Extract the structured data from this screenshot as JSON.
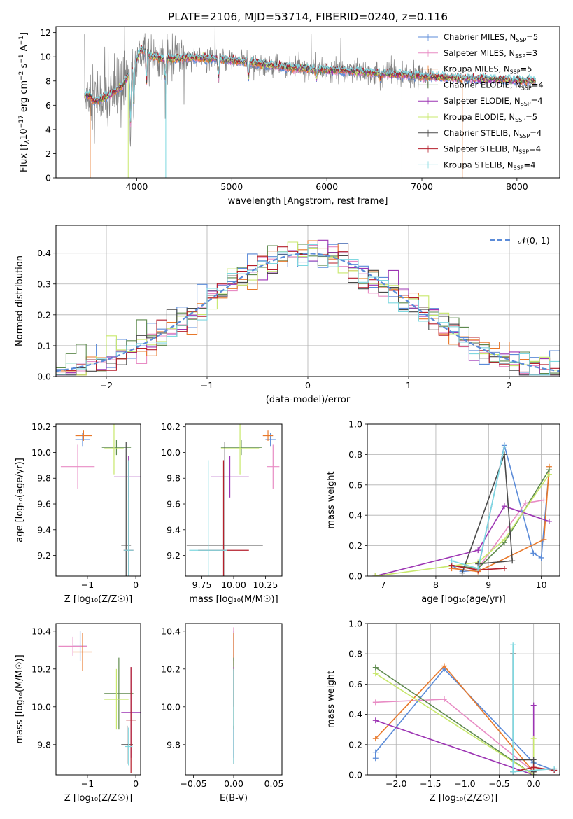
{
  "figure_title": "PLATE=2106, MJD=53714, FIBERID=0240, z=0.116",
  "colors": {
    "Chabrier MILES": "#5b8bd8",
    "Salpeter MILES": "#e88bc4",
    "Kroupa MILES": "#e8782a",
    "Chabrier ELODIE": "#5e8a4e",
    "Salpeter ELODIE": "#9c34b3",
    "Kroupa ELODIE": "#c8e86c",
    "Chabrier STELIB": "#4a4a4a",
    "Salpeter STELIB": "#b51f2b",
    "Kroupa STELIB": "#7fd8e0",
    "data": "#808080"
  },
  "chart_data": [
    {
      "id": "spectrum",
      "type": "line",
      "title": "PLATE=2106, MJD=53714, FIBERID=0240, z=0.116",
      "xlabel": "wavelength [Angstrom, rest frame]",
      "ylabel_parts": [
        "Flux [f",
        "λ",
        "10",
        "−17",
        " erg cm",
        "−2",
        " s",
        "−1",
        " A",
        "−1",
        "]"
      ],
      "xlim": [
        3150,
        8450
      ],
      "ylim": [
        0,
        12.5
      ],
      "xticks": [
        4000,
        5000,
        6000,
        7000,
        8000
      ],
      "yticks": [
        0,
        2,
        4,
        6,
        8,
        10,
        12
      ],
      "legend_position": "upper right",
      "legend": [
        {
          "base": "Chabrier MILES, N",
          "sub": "SSP",
          "tail": "=5"
        },
        {
          "base": "Salpeter MILES, N",
          "sub": "SSP",
          "tail": "=3"
        },
        {
          "base": "Kroupa MILES, N",
          "sub": "SSP",
          "tail": "=5"
        },
        {
          "base": "Chabrier ELODIE, N",
          "sub": "SSP",
          "tail": "=4"
        },
        {
          "base": "Salpeter ELODIE, N",
          "sub": "SSP",
          "tail": "=4"
        },
        {
          "base": "Kroupa ELODIE, N",
          "sub": "SSP",
          "tail": "=5"
        },
        {
          "base": "Chabrier STELIB, N",
          "sub": "SSP",
          "tail": "=4"
        },
        {
          "base": "Salpeter STELIB, N",
          "sub": "SSP",
          "tail": "=4"
        },
        {
          "base": "Kroupa STELIB, N",
          "sub": "SSP",
          "tail": "=4"
        }
      ],
      "continuum_points": [
        [
          3500,
          6.8
        ],
        [
          3550,
          6.3
        ],
        [
          3650,
          6.6
        ],
        [
          3750,
          7.0
        ],
        [
          3850,
          7.6
        ],
        [
          3950,
          9.0
        ],
        [
          4050,
          10.6
        ],
        [
          4150,
          10.0
        ],
        [
          4300,
          9.8
        ],
        [
          4500,
          9.9
        ],
        [
          4700,
          9.9
        ],
        [
          5000,
          9.7
        ],
        [
          5300,
          9.4
        ],
        [
          5600,
          9.1
        ],
        [
          6000,
          8.9
        ],
        [
          6300,
          8.8
        ],
        [
          6600,
          8.6
        ],
        [
          7000,
          8.4
        ],
        [
          7200,
          8.3
        ]
      ],
      "absorption_lines": [
        [
          3934,
          4.5
        ],
        [
          3969,
          3.5
        ],
        [
          4102,
          2.5
        ],
        [
          4300,
          1.8
        ],
        [
          4861,
          1.5
        ],
        [
          5175,
          1.3
        ],
        [
          5890,
          0.8
        ],
        [
          6563,
          0.5
        ]
      ],
      "model_dropouts": [
        3510,
        3910,
        4305,
        6790,
        7425
      ],
      "data_range": [
        3450,
        7100
      ],
      "model_range": [
        3450,
        8200
      ]
    },
    {
      "id": "residuals",
      "type": "line",
      "xlabel": "(data-model)/error",
      "ylabel": "Normed distribution",
      "xlim": [
        -2.5,
        2.5
      ],
      "ylim": [
        0,
        0.49
      ],
      "xticks": [
        -2,
        -1,
        0,
        1,
        2
      ],
      "xtick_labels": [
        "−2",
        "−1",
        "0",
        "1",
        "2"
      ],
      "yticks": [
        0,
        0.1,
        0.2,
        0.3,
        0.4
      ],
      "ytick_labels": [
        "0.0",
        "0.1",
        "0.2",
        "0.3",
        "0.4"
      ],
      "grid": true,
      "legend_position": "upper right",
      "legend_label": "𝒩(0, 1)",
      "reference_curve": {
        "mu": 0,
        "sigma": 1,
        "color": "#5b8bd8"
      },
      "bin_width": 0.1
    },
    {
      "id": "age_vs_Z",
      "type": "scatter",
      "xlabel": "Z [log₁₀(Z/Z☉)]",
      "ylabel": "age  [log₁₀(age/yr)]",
      "xlim": [
        -1.65,
        0.1
      ],
      "ylim": [
        9.04,
        10.22
      ],
      "xticks": [
        -1,
        0
      ],
      "xtick_labels": [
        "−1",
        "0"
      ],
      "yticks": [
        9.2,
        9.4,
        9.6,
        9.8,
        10.0,
        10.2
      ],
      "ytick_labels": [
        "9.2",
        "9.4",
        "9.6",
        "9.8",
        "10.0",
        "10.2"
      ],
      "points": [
        {
          "model": "Chabrier MILES",
          "x": -1.1,
          "xerr": 0.15,
          "y": 10.1,
          "yerr": 0.05
        },
        {
          "model": "Salpeter MILES",
          "x": -1.2,
          "xerr": 0.35,
          "y": 9.89,
          "yerr": 0.17
        },
        {
          "model": "Kroupa MILES",
          "x": -1.08,
          "xerr": 0.17,
          "y": 10.13,
          "yerr": 0.04
        },
        {
          "model": "Chabrier ELODIE",
          "x": -0.4,
          "xerr": 0.3,
          "y": 10.04,
          "yerr": 0.06
        },
        {
          "model": "Salpeter ELODIE",
          "x": -0.15,
          "xerr": 0.3,
          "y": 9.81,
          "yerr": 0.16
        },
        {
          "model": "Kroupa ELODIE",
          "x": -0.45,
          "xerr": 0.2,
          "y": 10.03,
          "yerr": 0.2
        },
        {
          "model": "Chabrier STELIB",
          "x": -0.2,
          "xerr": 0.1,
          "y": 9.28,
          "yerr": 0.8
        },
        {
          "model": "Salpeter STELIB",
          "x": -0.15,
          "xerr": 0.1,
          "y": 9.24,
          "yerr": 0.7
        },
        {
          "model": "Kroupa STELIB",
          "x": -0.15,
          "xerr": 0.1,
          "y": 9.24,
          "yerr": 0.7
        }
      ]
    },
    {
      "id": "age_vs_mass",
      "type": "scatter",
      "xlabel": "mass [log₁₀(M/M☉)]",
      "xlim": [
        9.62,
        10.38
      ],
      "ylim": [
        9.04,
        10.22
      ],
      "xticks": [
        9.75,
        10.0,
        10.25
      ],
      "xtick_labels": [
        "9.75",
        "10.00",
        "10.25"
      ],
      "yticks": [
        9.2,
        9.4,
        9.6,
        9.8,
        10.0,
        10.2
      ],
      "ytick_labels": [
        "9.2",
        "9.4",
        "9.6",
        "9.8",
        "10.0",
        "10.2"
      ],
      "points": [
        {
          "model": "Chabrier MILES",
          "x": 10.29,
          "xerr": 0.04,
          "y": 10.1,
          "yerr": 0.05
        },
        {
          "model": "Salpeter MILES",
          "x": 10.31,
          "xerr": 0.05,
          "y": 9.89,
          "yerr": 0.17
        },
        {
          "model": "Kroupa MILES",
          "x": 10.27,
          "xerr": 0.04,
          "y": 10.13,
          "yerr": 0.04
        },
        {
          "model": "Chabrier ELODIE",
          "x": 10.06,
          "xerr": 0.16,
          "y": 10.04,
          "yerr": 0.06
        },
        {
          "model": "Salpeter ELODIE",
          "x": 9.97,
          "xerr": 0.15,
          "y": 9.81,
          "yerr": 0.16
        },
        {
          "model": "Kroupa ELODIE",
          "x": 10.05,
          "xerr": 0.15,
          "y": 10.03,
          "yerr": 0.2
        },
        {
          "model": "Chabrier STELIB",
          "x": 9.93,
          "xerr": 0.3,
          "y": 9.28,
          "yerr": 0.8
        },
        {
          "model": "Salpeter STELIB",
          "x": 9.92,
          "xerr": 0.2,
          "y": 9.24,
          "yerr": 0.7
        },
        {
          "model": "Kroupa STELIB",
          "x": 9.8,
          "xerr": 0.15,
          "y": 9.24,
          "yerr": 0.7
        }
      ]
    },
    {
      "id": "weight_vs_age",
      "type": "line",
      "xlabel": "age  [log₁₀(age/yr)]",
      "ylabel": "mass weight",
      "xlim": [
        6.7,
        10.35
      ],
      "ylim": [
        0,
        1
      ],
      "xticks": [
        7,
        8,
        9,
        10
      ],
      "xtick_labels": [
        "7",
        "8",
        "9",
        "10"
      ],
      "yticks": [
        0,
        0.2,
        0.4,
        0.6,
        0.8,
        1.0
      ],
      "ytick_labels": [
        "0.0",
        "0.2",
        "0.4",
        "0.6",
        "0.8",
        "1.0"
      ],
      "grid": true,
      "series": [
        {
          "model": "Chabrier MILES",
          "points": [
            [
              8.3,
              0.07
            ],
            [
              8.5,
              0.03
            ],
            [
              8.8,
              0.04
            ],
            [
              9.3,
              0.86
            ],
            [
              9.85,
              0.15
            ],
            [
              10.0,
              0.12
            ],
            [
              10.15,
              0.7
            ]
          ]
        },
        {
          "model": "Salpeter MILES",
          "points": [
            [
              8.3,
              0.07
            ],
            [
              8.8,
              0.05
            ],
            [
              9.7,
              0.48
            ],
            [
              10.05,
              0.5
            ]
          ]
        },
        {
          "model": "Kroupa MILES",
          "points": [
            [
              8.3,
              0.05
            ],
            [
              8.8,
              0.03
            ],
            [
              10.05,
              0.24
            ],
            [
              10.15,
              0.72
            ]
          ]
        },
        {
          "model": "Chabrier ELODIE",
          "points": [
            [
              8.3,
              0.07
            ],
            [
              8.8,
              0.05
            ],
            [
              9.3,
              0.22
            ],
            [
              10.15,
              0.7
            ]
          ]
        },
        {
          "model": "Salpeter ELODIE",
          "points": [
            [
              6.85,
              0.0
            ],
            [
              8.8,
              0.17
            ],
            [
              9.3,
              0.46
            ],
            [
              10.15,
              0.36
            ]
          ]
        },
        {
          "model": "Kroupa ELODIE",
          "points": [
            [
              6.85,
              0.0
            ],
            [
              8.8,
              0.09
            ],
            [
              9.3,
              0.24
            ],
            [
              10.15,
              0.67
            ]
          ]
        },
        {
          "model": "Chabrier STELIB",
          "points": [
            [
              8.5,
              0.02
            ],
            [
              9.3,
              0.8
            ],
            [
              9.45,
              0.1
            ],
            [
              8.8,
              0.08
            ]
          ]
        },
        {
          "model": "Salpeter STELIB",
          "points": [
            [
              8.3,
              0.07
            ],
            [
              8.8,
              0.04
            ],
            [
              9.3,
              0.05
            ]
          ]
        },
        {
          "model": "Kroupa STELIB",
          "points": [
            [
              8.3,
              0.1
            ],
            [
              8.8,
              0.05
            ],
            [
              9.3,
              0.85
            ]
          ]
        }
      ]
    },
    {
      "id": "mass_vs_Z",
      "type": "scatter",
      "xlabel": "Z [log₁₀(Z/Z☉)]",
      "ylabel": "mass [log₁₀(M/M☉)]",
      "xlim": [
        -1.65,
        0.1
      ],
      "ylim": [
        9.64,
        10.44
      ],
      "xticks": [
        -1,
        0
      ],
      "xtick_labels": [
        "−1",
        "0"
      ],
      "yticks": [
        9.8,
        10.0,
        10.2,
        10.4
      ],
      "ytick_labels": [
        "9.8",
        "10.0",
        "10.2",
        "10.4"
      ],
      "points": [
        {
          "model": "Chabrier MILES",
          "x": -1.15,
          "xerr": 0.15,
          "y": 10.32,
          "yerr": 0.08
        },
        {
          "model": "Salpeter MILES",
          "x": -1.3,
          "xerr": 0.3,
          "y": 10.32,
          "yerr": 0.05
        },
        {
          "model": "Kroupa MILES",
          "x": -1.1,
          "xerr": 0.2,
          "y": 10.29,
          "yerr": 0.1
        },
        {
          "model": "Chabrier ELODIE",
          "x": -0.35,
          "xerr": 0.3,
          "y": 10.07,
          "yerr": 0.19
        },
        {
          "model": "Salpeter ELODIE",
          "x": -0.1,
          "xerr": 0.2,
          "y": 9.97,
          "yerr": 0.24
        },
        {
          "model": "Kroupa ELODIE",
          "x": -0.4,
          "xerr": 0.25,
          "y": 10.04,
          "yerr": 0.16
        },
        {
          "model": "Chabrier STELIB",
          "x": -0.18,
          "xerr": 0.12,
          "y": 9.8,
          "yerr": 0.1
        },
        {
          "model": "Salpeter STELIB",
          "x": -0.1,
          "xerr": 0.1,
          "y": 9.93,
          "yerr": 0.28
        },
        {
          "model": "Kroupa STELIB",
          "x": -0.15,
          "xerr": 0.08,
          "y": 9.79,
          "yerr": 0.1
        }
      ]
    },
    {
      "id": "mass_vs_ebv",
      "type": "scatter",
      "xlabel": "E(B-V)",
      "xlim": [
        -0.06,
        0.06
      ],
      "ylim": [
        9.64,
        10.44
      ],
      "xticks": [
        -0.05,
        0,
        0.05
      ],
      "xtick_labels": [
        "−0.05",
        "0.00",
        "0.05"
      ],
      "yticks": [
        9.8,
        10.0,
        10.2,
        10.4
      ],
      "ytick_labels": [
        "9.8",
        "10.0",
        "10.2",
        "10.4"
      ],
      "points": [
        {
          "model": "Chabrier MILES",
          "x": 0.0,
          "xerr": 0,
          "y": 10.32,
          "yerr": 0.08
        },
        {
          "model": "Salpeter MILES",
          "x": 0.0,
          "xerr": 0,
          "y": 10.32,
          "yerr": 0.1
        },
        {
          "model": "Kroupa MILES",
          "x": 0.0,
          "xerr": 0,
          "y": 10.29,
          "yerr": 0.1
        },
        {
          "model": "Chabrier ELODIE",
          "x": 0.0,
          "xerr": 0,
          "y": 10.07,
          "yerr": 0.19
        },
        {
          "model": "Salpeter ELODIE",
          "x": 0.0,
          "xerr": 0,
          "y": 9.97,
          "yerr": 0.24
        },
        {
          "model": "Kroupa ELODIE",
          "x": 0.0,
          "xerr": 0,
          "y": 10.04,
          "yerr": 0.16
        },
        {
          "model": "Chabrier STELIB",
          "x": 0.0,
          "xerr": 0,
          "y": 9.8,
          "yerr": 0.1
        },
        {
          "model": "Salpeter STELIB",
          "x": 0.0,
          "xerr": 0,
          "y": 10.1,
          "yerr": 0.1
        },
        {
          "model": "Kroupa STELIB",
          "x": 0.0,
          "xerr": 0,
          "y": 9.95,
          "yerr": 0.25
        }
      ]
    },
    {
      "id": "weight_vs_Z",
      "type": "line",
      "xlabel": "Z [log₁₀(Z/Z☉)]",
      "ylabel": "mass weight",
      "xlim": [
        -2.42,
        0.38
      ],
      "ylim": [
        0,
        1
      ],
      "xticks": [
        -2.0,
        -1.5,
        -1.0,
        -0.5,
        0.0
      ],
      "xtick_labels": [
        "−2.0",
        "−1.5",
        "−1.0",
        "−0.5",
        "0.0"
      ],
      "yticks": [
        0,
        0.2,
        0.4,
        0.6,
        0.8,
        1.0
      ],
      "ytick_labels": [
        "0.0",
        "0.2",
        "0.4",
        "0.6",
        "0.8",
        "1.0"
      ],
      "grid": true,
      "series": [
        {
          "model": "Chabrier MILES",
          "points": [
            [
              -2.3,
              0.11
            ],
            [
              -2.3,
              0.15
            ],
            [
              -1.3,
              0.7
            ],
            [
              0.0,
              0.08
            ],
            [
              0.3,
              0.03
            ]
          ]
        },
        {
          "model": "Salpeter MILES",
          "points": [
            [
              -2.3,
              0.48
            ],
            [
              -1.3,
              0.5
            ],
            [
              0.0,
              0.02
            ]
          ]
        },
        {
          "model": "Kroupa MILES",
          "points": [
            [
              -2.3,
              0.24
            ],
            [
              -1.3,
              0.72
            ],
            [
              0.0,
              0.02
            ]
          ]
        },
        {
          "model": "Chabrier ELODIE",
          "points": [
            [
              -2.3,
              0.71
            ],
            [
              0.0,
              0.0
            ]
          ]
        },
        {
          "model": "Salpeter ELODIE",
          "points": [
            [
              -2.3,
              0.36
            ],
            [
              0.0,
              0.0
            ],
            [
              0.0,
              0.46
            ]
          ]
        },
        {
          "model": "Kroupa ELODIE",
          "points": [
            [
              -2.3,
              0.67
            ],
            [
              0.0,
              0.0
            ],
            [
              0.0,
              0.24
            ]
          ]
        },
        {
          "model": "Chabrier STELIB",
          "points": [
            [
              -0.3,
              0.8
            ],
            [
              -0.3,
              0.1
            ],
            [
              0.0,
              0.1
            ],
            [
              0.0,
              0.02
            ]
          ]
        },
        {
          "model": "Salpeter STELIB",
          "points": [
            [
              -0.3,
              0.02
            ],
            [
              0.0,
              0.05
            ],
            [
              0.3,
              0.03
            ]
          ]
        },
        {
          "model": "Kroupa STELIB",
          "points": [
            [
              -0.3,
              0.86
            ],
            [
              -0.3,
              0.02
            ],
            [
              0.3,
              0.04
            ]
          ]
        }
      ]
    }
  ]
}
